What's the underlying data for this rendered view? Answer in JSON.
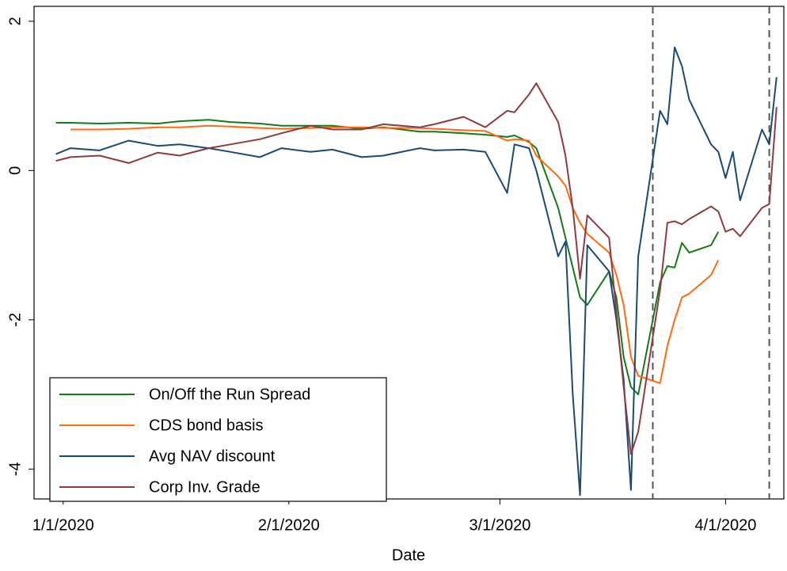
{
  "chart_data": {
    "type": "line",
    "x_label": "Date",
    "x": [
      "2019-12-31",
      "2020-01-02",
      "2020-01-06",
      "2020-01-10",
      "2020-01-14",
      "2020-01-17",
      "2020-01-21",
      "2020-01-24",
      "2020-01-28",
      "2020-01-31",
      "2020-02-04",
      "2020-02-07",
      "2020-02-11",
      "2020-02-14",
      "2020-02-19",
      "2020-02-21",
      "2020-02-25",
      "2020-02-28",
      "2020-03-02",
      "2020-03-03",
      "2020-03-05",
      "2020-03-06",
      "2020-03-09",
      "2020-03-10",
      "2020-03-11",
      "2020-03-12",
      "2020-03-13",
      "2020-03-16",
      "2020-03-17",
      "2020-03-18",
      "2020-03-19",
      "2020-03-20",
      "2020-03-23",
      "2020-03-24",
      "2020-03-25",
      "2020-03-26",
      "2020-03-27",
      "2020-03-30",
      "2020-03-31",
      "2020-04-01",
      "2020-04-02",
      "2020-04-03",
      "2020-04-06",
      "2020-04-07",
      "2020-04-08"
    ],
    "series": [
      {
        "name": "On/Off the Run Spread",
        "color": "#157a15",
        "values": [
          0.64,
          0.64,
          0.63,
          0.64,
          0.63,
          0.66,
          0.68,
          0.65,
          0.63,
          0.6,
          0.6,
          0.6,
          0.56,
          0.58,
          0.52,
          0.52,
          0.5,
          0.48,
          0.45,
          0.47,
          0.38,
          0.3,
          -0.5,
          -0.9,
          -1.3,
          -1.7,
          -1.8,
          -1.35,
          -1.7,
          -2.5,
          -2.9,
          -3.0,
          -1.5,
          -1.28,
          -1.3,
          -0.97,
          -1.1,
          -1.0,
          -0.82,
          null,
          null,
          null,
          null,
          null,
          null
        ]
      },
      {
        "name": "CDS bond basis",
        "color": "#ff6a13",
        "values": [
          null,
          0.55,
          0.55,
          0.56,
          0.58,
          0.58,
          0.6,
          0.59,
          0.57,
          0.56,
          0.57,
          0.58,
          0.58,
          0.57,
          0.57,
          0.56,
          0.54,
          0.53,
          0.4,
          0.42,
          0.4,
          0.2,
          -0.08,
          -0.2,
          -0.5,
          -0.7,
          -0.85,
          -1.1,
          -1.4,
          -1.8,
          -2.5,
          -2.75,
          -2.85,
          -2.35,
          -2.0,
          -1.7,
          -1.65,
          -1.4,
          -1.2,
          null,
          null,
          null,
          null,
          null,
          null
        ]
      },
      {
        "name": "Avg NAV discount",
        "color": "#1a4a72",
        "values": [
          0.22,
          0.3,
          0.27,
          0.4,
          0.33,
          0.35,
          0.3,
          0.25,
          0.18,
          0.3,
          0.25,
          0.28,
          0.18,
          0.2,
          0.3,
          0.27,
          0.28,
          0.25,
          -0.3,
          0.35,
          0.3,
          0.0,
          -1.15,
          -0.95,
          -3.0,
          -4.35,
          -1.0,
          -1.35,
          -2.0,
          -2.8,
          -4.28,
          -1.15,
          0.8,
          0.62,
          1.65,
          1.4,
          0.95,
          0.35,
          0.25,
          -0.1,
          0.25,
          -0.4,
          0.55,
          0.35,
          1.25
        ]
      },
      {
        "name": "Corp Inv. Grade",
        "color": "#8e3b3f",
        "values": [
          0.13,
          0.18,
          0.2,
          0.1,
          0.24,
          0.2,
          0.3,
          0.35,
          0.42,
          0.5,
          0.6,
          0.55,
          0.55,
          0.62,
          0.58,
          0.62,
          0.72,
          0.58,
          0.8,
          0.78,
          1.02,
          1.17,
          0.65,
          0.2,
          -0.5,
          -1.45,
          -0.6,
          -0.9,
          -1.9,
          -2.9,
          -3.8,
          -3.5,
          -1.6,
          -0.7,
          -0.68,
          -0.72,
          -0.65,
          -0.48,
          -0.55,
          -0.82,
          -0.78,
          -0.88,
          -0.5,
          -0.45,
          0.85
        ]
      }
    ],
    "vlines": [
      "2020-03-22",
      "2020-04-07"
    ],
    "vline_color": "#555555",
    "xlim": [
      "2019-12-28",
      "2020-04-09"
    ],
    "xticks": [
      {
        "value": "2020-01-01",
        "label": "1/1/2020"
      },
      {
        "value": "2020-02-01",
        "label": "2/1/2020"
      },
      {
        "value": "2020-03-01",
        "label": "3/1/2020"
      },
      {
        "value": "2020-04-01",
        "label": "4/1/2020"
      }
    ],
    "ylim": [
      -4.4,
      2.2
    ],
    "yticks": [
      -4,
      -2,
      0,
      2
    ],
    "legend": "lower left",
    "grid": false
  }
}
